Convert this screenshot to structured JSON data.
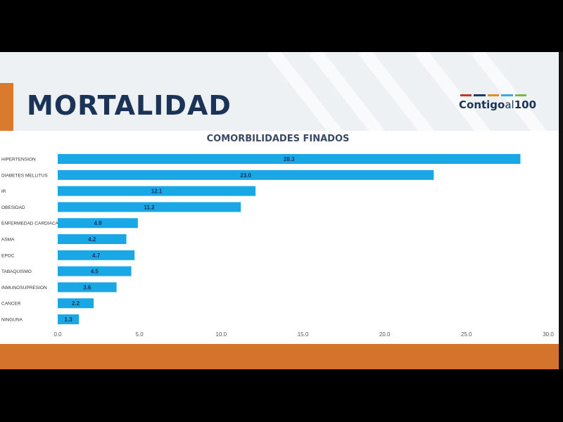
{
  "slide": {
    "title": "MORTALIDAD",
    "logo_text_main": "Contigo",
    "logo_text_small": "al",
    "logo_text_num": "100",
    "logo_colors": [
      "#c0392b",
      "#1e3a5f",
      "#e08e2b",
      "#3fa9dc",
      "#7ab648"
    ],
    "accent_color": "#d97a2c",
    "footer_color": "#d4732b"
  },
  "chart_data": {
    "type": "bar",
    "orientation": "horizontal",
    "title": "COMORBILIDADES FINADOS",
    "categories": [
      "HIPERTENSION",
      "DIABETES MELLITUS",
      "IR",
      "OBESIDAD",
      "ENFERMEDAD CARDIACA",
      "ASMA",
      "EPOC",
      "TABAQUISMO",
      "INMUNOSUPRESION",
      "CANCER",
      "NINGUNA"
    ],
    "values": [
      28.3,
      23.0,
      12.1,
      11.2,
      4.9,
      4.2,
      4.7,
      4.5,
      3.6,
      2.2,
      1.3
    ],
    "value_labels": [
      "28.3",
      "23.0",
      "12.1",
      "11.2",
      "4.9",
      "4.2",
      "4.7",
      "4.5",
      "3.6",
      "2.2",
      "1.3"
    ],
    "xlim": [
      0,
      30
    ],
    "xticks": [
      "0.0",
      "5.0",
      "10.0",
      "15.0",
      "20.0",
      "25.0",
      "30.0"
    ],
    "bar_color": "#1aa7e6",
    "grid": false,
    "legend": "none"
  }
}
